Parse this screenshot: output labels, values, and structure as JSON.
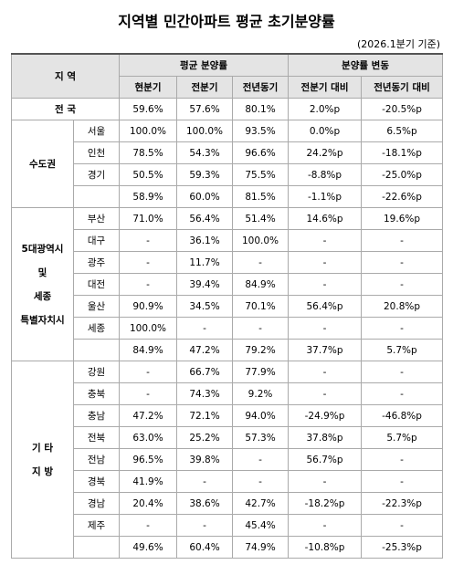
{
  "header": {
    "title": "지역별 민간아파트 평균 초기분양률",
    "note": "(2026.1분기 기준)"
  },
  "table": {
    "region_header": "지 역",
    "group_headers": [
      "평균 분양률",
      "분양률 변동"
    ],
    "columns": [
      "현분기",
      "전분기",
      "전년동기",
      "전분기 대비",
      "전년동기 대비"
    ],
    "national": {
      "label": "전 국",
      "values": [
        "59.6%",
        "57.6%",
        "80.1%",
        "2.0%p",
        "-20.5%p"
      ]
    },
    "groups": [
      {
        "label": [
          "수도권"
        ],
        "rows": [
          {
            "region": "서울",
            "values": [
              "100.0%",
              "100.0%",
              "93.5%",
              "0.0%p",
              "6.5%p"
            ]
          },
          {
            "region": "인천",
            "values": [
              "78.5%",
              "54.3%",
              "96.6%",
              "24.2%p",
              "-18.1%p"
            ]
          },
          {
            "region": "경기",
            "values": [
              "50.5%",
              "59.3%",
              "75.5%",
              "-8.8%p",
              "-25.0%p"
            ]
          }
        ],
        "subtotal": [
          "58.9%",
          "60.0%",
          "81.5%",
          "-1.1%p",
          "-22.6%p"
        ]
      },
      {
        "label": [
          "5대광역시",
          "및",
          "세종",
          "특별자치시"
        ],
        "rows": [
          {
            "region": "부산",
            "values": [
              "71.0%",
              "56.4%",
              "51.4%",
              "14.6%p",
              "19.6%p"
            ]
          },
          {
            "region": "대구",
            "values": [
              "-",
              "36.1%",
              "100.0%",
              "-",
              "-"
            ]
          },
          {
            "region": "광주",
            "values": [
              "-",
              "11.7%",
              "-",
              "-",
              "-"
            ]
          },
          {
            "region": "대전",
            "values": [
              "-",
              "39.4%",
              "84.9%",
              "-",
              "-"
            ]
          },
          {
            "region": "울산",
            "values": [
              "90.9%",
              "34.5%",
              "70.1%",
              "56.4%p",
              "20.8%p"
            ]
          },
          {
            "region": "세종",
            "values": [
              "100.0%",
              "-",
              "-",
              "-",
              "-"
            ]
          }
        ],
        "subtotal": [
          "84.9%",
          "47.2%",
          "79.2%",
          "37.7%p",
          "5.7%p"
        ]
      },
      {
        "label": [
          "기 타",
          "지 방"
        ],
        "rows": [
          {
            "region": "강원",
            "values": [
              "-",
              "66.7%",
              "77.9%",
              "-",
              "-"
            ]
          },
          {
            "region": "충북",
            "values": [
              "-",
              "74.3%",
              "9.2%",
              "-",
              "-"
            ]
          },
          {
            "region": "충남",
            "values": [
              "47.2%",
              "72.1%",
              "94.0%",
              "-24.9%p",
              "-46.8%p"
            ]
          },
          {
            "region": "전북",
            "values": [
              "63.0%",
              "25.2%",
              "57.3%",
              "37.8%p",
              "5.7%p"
            ]
          },
          {
            "region": "전남",
            "values": [
              "96.5%",
              "39.8%",
              "-",
              "56.7%p",
              "-"
            ]
          },
          {
            "region": "경북",
            "values": [
              "41.9%",
              "-",
              "-",
              "-",
              "-"
            ]
          },
          {
            "region": "경남",
            "values": [
              "20.4%",
              "38.6%",
              "42.7%",
              "-18.2%p",
              "-22.3%p"
            ]
          },
          {
            "region": "제주",
            "values": [
              "-",
              "-",
              "45.4%",
              "-",
              "-"
            ]
          }
        ],
        "subtotal": [
          "49.6%",
          "60.4%",
          "74.9%",
          "-10.8%p",
          "-25.3%p"
        ]
      }
    ]
  }
}
